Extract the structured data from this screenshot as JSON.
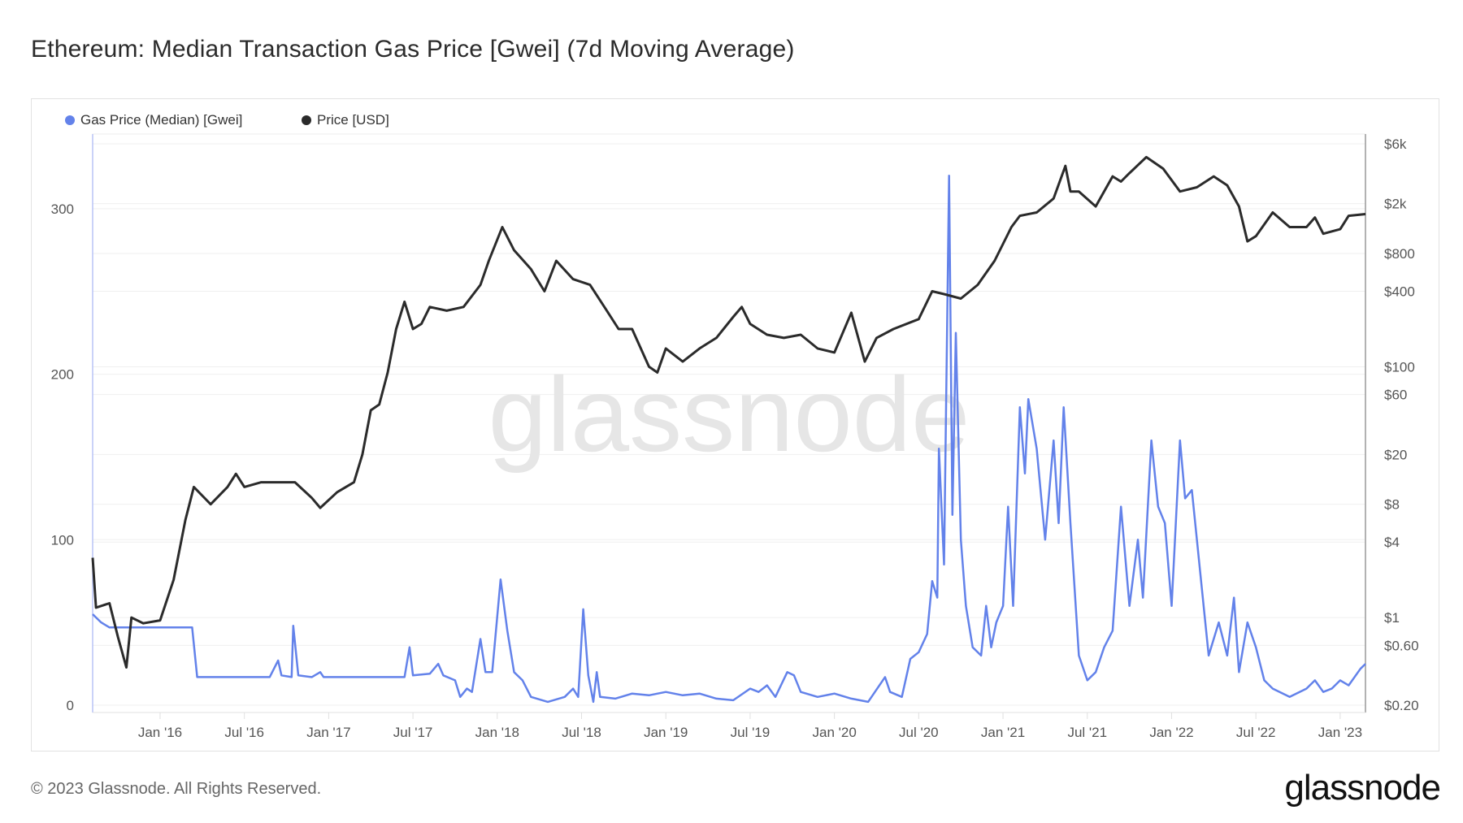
{
  "title": "Ethereum: Median Transaction Gas Price [Gwei] (7d Moving Average)",
  "footer": "© 2023 Glassnode. All Rights Reserved.",
  "logo": "glassnode",
  "watermark": "glassnode",
  "chart_data": {
    "type": "line",
    "title": "Ethereum: Median Transaction Gas Price [Gwei] (7d Moving Average)",
    "legend_position": "top-left",
    "grid": true,
    "x_range": [
      2015.6,
      2023.15
    ],
    "x_ticks": [
      {
        "v": 2016.0,
        "label": "Jan '16"
      },
      {
        "v": 2016.5,
        "label": "Jul '16"
      },
      {
        "v": 2017.0,
        "label": "Jan '17"
      },
      {
        "v": 2017.5,
        "label": "Jul '17"
      },
      {
        "v": 2018.0,
        "label": "Jan '18"
      },
      {
        "v": 2018.5,
        "label": "Jul '18"
      },
      {
        "v": 2019.0,
        "label": "Jan '19"
      },
      {
        "v": 2019.5,
        "label": "Jul '19"
      },
      {
        "v": 2020.0,
        "label": "Jan '20"
      },
      {
        "v": 2020.5,
        "label": "Jul '20"
      },
      {
        "v": 2021.0,
        "label": "Jan '21"
      },
      {
        "v": 2021.5,
        "label": "Jul '21"
      },
      {
        "v": 2022.0,
        "label": "Jan '22"
      },
      {
        "v": 2022.5,
        "label": "Jul '22"
      },
      {
        "v": 2023.0,
        "label": "Jan '23"
      }
    ],
    "y_left": {
      "label": "Gas Price [Gwei]",
      "range": [
        0,
        340
      ],
      "ticks": [
        {
          "v": 0,
          "label": "0"
        },
        {
          "v": 100,
          "label": "100"
        },
        {
          "v": 200,
          "label": "200"
        },
        {
          "v": 300,
          "label": "300"
        }
      ]
    },
    "y_right": {
      "label": "Price [USD]",
      "scale": "log",
      "range": [
        0.2,
        6000
      ],
      "ticks": [
        {
          "v": 6000,
          "label": "$6k"
        },
        {
          "v": 2000,
          "label": "$2k"
        },
        {
          "v": 800,
          "label": "$800"
        },
        {
          "v": 400,
          "label": "$400"
        },
        {
          "v": 100,
          "label": "$100"
        },
        {
          "v": 60,
          "label": "$60"
        },
        {
          "v": 20,
          "label": "$20"
        },
        {
          "v": 8,
          "label": "$8"
        },
        {
          "v": 4,
          "label": "$4"
        },
        {
          "v": 1,
          "label": "$1"
        },
        {
          "v": 0.6,
          "label": "$0.60"
        },
        {
          "v": 0.2,
          "label": "$0.20"
        }
      ]
    },
    "series": [
      {
        "name": "Gas Price (Median) [Gwei]",
        "axis": "left",
        "color": "#6382ea",
        "points": [
          [
            2015.6,
            55
          ],
          [
            2015.65,
            50
          ],
          [
            2015.7,
            47
          ],
          [
            2016.19,
            47
          ],
          [
            2016.22,
            17
          ],
          [
            2016.65,
            17
          ],
          [
            2016.7,
            27
          ],
          [
            2016.72,
            18
          ],
          [
            2016.78,
            17
          ],
          [
            2016.79,
            48
          ],
          [
            2016.82,
            18
          ],
          [
            2016.9,
            17
          ],
          [
            2016.95,
            20
          ],
          [
            2016.97,
            17
          ],
          [
            2017.45,
            17
          ],
          [
            2017.48,
            35
          ],
          [
            2017.5,
            18
          ],
          [
            2017.6,
            19
          ],
          [
            2017.65,
            25
          ],
          [
            2017.68,
            18
          ],
          [
            2017.75,
            15
          ],
          [
            2017.78,
            5
          ],
          [
            2017.82,
            10
          ],
          [
            2017.85,
            8
          ],
          [
            2017.9,
            40
          ],
          [
            2017.93,
            20
          ],
          [
            2017.97,
            20
          ],
          [
            2018.02,
            76
          ],
          [
            2018.06,
            45
          ],
          [
            2018.1,
            20
          ],
          [
            2018.15,
            15
          ],
          [
            2018.2,
            5
          ],
          [
            2018.3,
            2
          ],
          [
            2018.4,
            5
          ],
          [
            2018.45,
            10
          ],
          [
            2018.48,
            5
          ],
          [
            2018.51,
            58
          ],
          [
            2018.54,
            18
          ],
          [
            2018.57,
            2
          ],
          [
            2018.59,
            20
          ],
          [
            2018.61,
            5
          ],
          [
            2018.7,
            4
          ],
          [
            2018.8,
            7
          ],
          [
            2018.9,
            6
          ],
          [
            2019.0,
            8
          ],
          [
            2019.1,
            6
          ],
          [
            2019.2,
            7
          ],
          [
            2019.3,
            4
          ],
          [
            2019.4,
            3
          ],
          [
            2019.5,
            10
          ],
          [
            2019.55,
            8
          ],
          [
            2019.6,
            12
          ],
          [
            2019.65,
            5
          ],
          [
            2019.72,
            20
          ],
          [
            2019.76,
            18
          ],
          [
            2019.8,
            8
          ],
          [
            2019.9,
            5
          ],
          [
            2020.0,
            7
          ],
          [
            2020.1,
            4
          ],
          [
            2020.2,
            2
          ],
          [
            2020.3,
            17
          ],
          [
            2020.33,
            8
          ],
          [
            2020.4,
            5
          ],
          [
            2020.45,
            28
          ],
          [
            2020.5,
            32
          ],
          [
            2020.55,
            43
          ],
          [
            2020.58,
            75
          ],
          [
            2020.61,
            65
          ],
          [
            2020.62,
            155
          ],
          [
            2020.65,
            85
          ],
          [
            2020.68,
            320
          ],
          [
            2020.7,
            115
          ],
          [
            2020.72,
            225
          ],
          [
            2020.75,
            100
          ],
          [
            2020.78,
            60
          ],
          [
            2020.82,
            35
          ],
          [
            2020.87,
            30
          ],
          [
            2020.9,
            60
          ],
          [
            2020.93,
            35
          ],
          [
            2020.96,
            50
          ],
          [
            2021.0,
            60
          ],
          [
            2021.03,
            120
          ],
          [
            2021.06,
            60
          ],
          [
            2021.1,
            180
          ],
          [
            2021.13,
            140
          ],
          [
            2021.15,
            185
          ],
          [
            2021.2,
            155
          ],
          [
            2021.25,
            100
          ],
          [
            2021.3,
            160
          ],
          [
            2021.33,
            110
          ],
          [
            2021.36,
            180
          ],
          [
            2021.4,
            110
          ],
          [
            2021.45,
            30
          ],
          [
            2021.5,
            15
          ],
          [
            2021.55,
            20
          ],
          [
            2021.6,
            35
          ],
          [
            2021.65,
            45
          ],
          [
            2021.7,
            120
          ],
          [
            2021.75,
            60
          ],
          [
            2021.8,
            100
          ],
          [
            2021.83,
            65
          ],
          [
            2021.88,
            160
          ],
          [
            2021.92,
            120
          ],
          [
            2021.96,
            110
          ],
          [
            2022.0,
            60
          ],
          [
            2022.05,
            160
          ],
          [
            2022.08,
            125
          ],
          [
            2022.12,
            130
          ],
          [
            2022.18,
            70
          ],
          [
            2022.22,
            30
          ],
          [
            2022.28,
            50
          ],
          [
            2022.33,
            30
          ],
          [
            2022.37,
            65
          ],
          [
            2022.4,
            20
          ],
          [
            2022.45,
            50
          ],
          [
            2022.5,
            35
          ],
          [
            2022.55,
            15
          ],
          [
            2022.6,
            10
          ],
          [
            2022.7,
            5
          ],
          [
            2022.8,
            10
          ],
          [
            2022.85,
            15
          ],
          [
            2022.9,
            8
          ],
          [
            2022.95,
            10
          ],
          [
            2023.0,
            15
          ],
          [
            2023.05,
            12
          ],
          [
            2023.12,
            22
          ],
          [
            2023.15,
            25
          ]
        ]
      },
      {
        "name": "Price [USD]",
        "axis": "right",
        "color": "#2b2b2b",
        "points": [
          [
            2015.6,
            3
          ],
          [
            2015.62,
            1.2
          ],
          [
            2015.7,
            1.3
          ],
          [
            2015.75,
            0.7
          ],
          [
            2015.8,
            0.4
          ],
          [
            2015.83,
            1.0
          ],
          [
            2015.9,
            0.9
          ],
          [
            2016.0,
            0.95
          ],
          [
            2016.08,
            2
          ],
          [
            2016.15,
            6
          ],
          [
            2016.2,
            11
          ],
          [
            2016.3,
            8
          ],
          [
            2016.4,
            11
          ],
          [
            2016.45,
            14
          ],
          [
            2016.5,
            11
          ],
          [
            2016.6,
            12
          ],
          [
            2016.8,
            12
          ],
          [
            2016.9,
            9
          ],
          [
            2016.95,
            7.5
          ],
          [
            2017.05,
            10
          ],
          [
            2017.15,
            12
          ],
          [
            2017.2,
            20
          ],
          [
            2017.25,
            45
          ],
          [
            2017.3,
            50
          ],
          [
            2017.35,
            90
          ],
          [
            2017.4,
            200
          ],
          [
            2017.45,
            330
          ],
          [
            2017.5,
            200
          ],
          [
            2017.55,
            220
          ],
          [
            2017.6,
            300
          ],
          [
            2017.7,
            280
          ],
          [
            2017.8,
            300
          ],
          [
            2017.9,
            450
          ],
          [
            2017.95,
            700
          ],
          [
            2018.03,
            1300
          ],
          [
            2018.1,
            850
          ],
          [
            2018.2,
            600
          ],
          [
            2018.28,
            400
          ],
          [
            2018.35,
            700
          ],
          [
            2018.45,
            500
          ],
          [
            2018.55,
            450
          ],
          [
            2018.65,
            280
          ],
          [
            2018.72,
            200
          ],
          [
            2018.8,
            200
          ],
          [
            2018.9,
            100
          ],
          [
            2018.95,
            90
          ],
          [
            2019.0,
            140
          ],
          [
            2019.1,
            110
          ],
          [
            2019.2,
            140
          ],
          [
            2019.3,
            170
          ],
          [
            2019.4,
            250
          ],
          [
            2019.45,
            300
          ],
          [
            2019.5,
            220
          ],
          [
            2019.6,
            180
          ],
          [
            2019.7,
            170
          ],
          [
            2019.8,
            180
          ],
          [
            2019.9,
            140
          ],
          [
            2020.0,
            130
          ],
          [
            2020.1,
            270
          ],
          [
            2020.18,
            110
          ],
          [
            2020.25,
            170
          ],
          [
            2020.35,
            200
          ],
          [
            2020.5,
            240
          ],
          [
            2020.58,
            400
          ],
          [
            2020.65,
            380
          ],
          [
            2020.75,
            350
          ],
          [
            2020.85,
            450
          ],
          [
            2020.95,
            700
          ],
          [
            2021.05,
            1300
          ],
          [
            2021.1,
            1600
          ],
          [
            2021.2,
            1700
          ],
          [
            2021.3,
            2200
          ],
          [
            2021.37,
            4000
          ],
          [
            2021.4,
            2500
          ],
          [
            2021.45,
            2500
          ],
          [
            2021.55,
            1900
          ],
          [
            2021.65,
            3300
          ],
          [
            2021.7,
            3000
          ],
          [
            2021.75,
            3500
          ],
          [
            2021.85,
            4700
          ],
          [
            2021.95,
            3800
          ],
          [
            2022.05,
            2500
          ],
          [
            2022.15,
            2700
          ],
          [
            2022.25,
            3300
          ],
          [
            2022.33,
            2800
          ],
          [
            2022.4,
            1900
          ],
          [
            2022.45,
            1000
          ],
          [
            2022.5,
            1100
          ],
          [
            2022.6,
            1700
          ],
          [
            2022.7,
            1300
          ],
          [
            2022.8,
            1300
          ],
          [
            2022.85,
            1550
          ],
          [
            2022.9,
            1150
          ],
          [
            2023.0,
            1250
          ],
          [
            2023.05,
            1600
          ],
          [
            2023.15,
            1650
          ]
        ]
      }
    ]
  }
}
